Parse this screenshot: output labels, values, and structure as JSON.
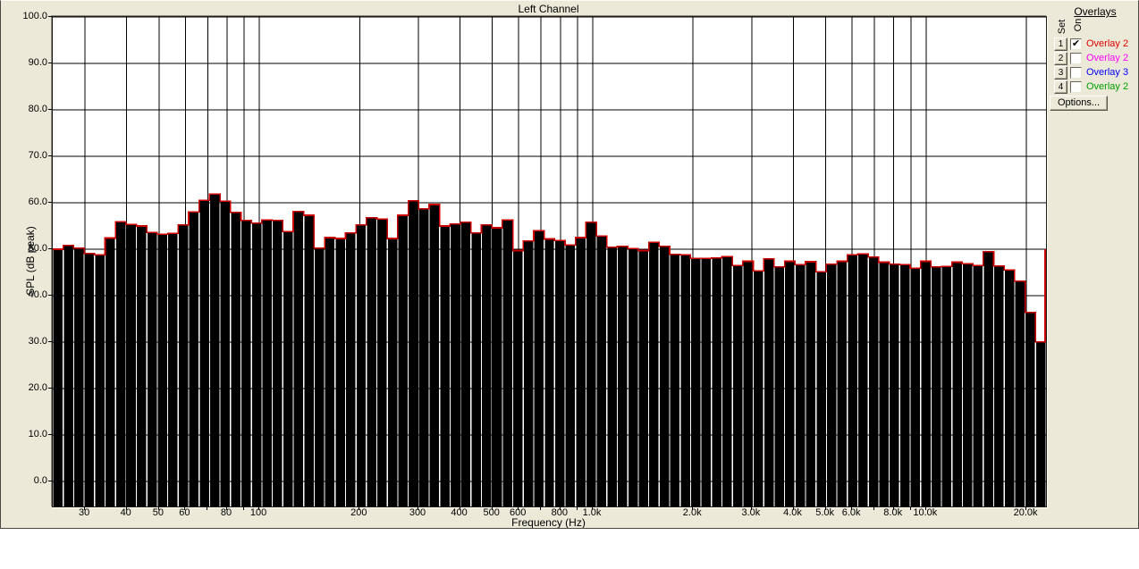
{
  "window": {
    "title": "Left Channel",
    "background_color": "#ece9d8"
  },
  "chart_data": {
    "type": "bar",
    "title": "Left Channel",
    "xlabel": "Frequency (Hz)",
    "ylabel": "SPL (dB peak)",
    "x_scale": "log",
    "x_range_hz": [
      24,
      22900
    ],
    "y_range_db": [
      -5.4,
      100
    ],
    "grid": "on",
    "bar_color": "#000000",
    "trace_color": "#cc0000",
    "trace_close_top_db": 50,
    "y_ticks": [
      {
        "value": 100,
        "label": "100.0"
      },
      {
        "value": 90,
        "label": "90.0"
      },
      {
        "value": 80,
        "label": "80.0"
      },
      {
        "value": 70,
        "label": "70.0"
      },
      {
        "value": 60,
        "label": "60.0"
      },
      {
        "value": 50,
        "label": "50.0"
      },
      {
        "value": 40,
        "label": "40.0"
      },
      {
        "value": 30,
        "label": "30.0"
      },
      {
        "value": 20,
        "label": "20.0"
      },
      {
        "value": 10,
        "label": "10.0"
      },
      {
        "value": 0,
        "label": "0.0"
      }
    ],
    "x_ticks": [
      {
        "hz": 30,
        "label": "30"
      },
      {
        "hz": 40,
        "label": "40"
      },
      {
        "hz": 50,
        "label": "50"
      },
      {
        "hz": 60,
        "label": "60"
      },
      {
        "hz": 80,
        "label": "80"
      },
      {
        "hz": 100,
        "label": "100"
      },
      {
        "hz": 200,
        "label": "200"
      },
      {
        "hz": 300,
        "label": "300"
      },
      {
        "hz": 400,
        "label": "400"
      },
      {
        "hz": 500,
        "label": "500"
      },
      {
        "hz": 600,
        "label": "600"
      },
      {
        "hz": 800,
        "label": "800"
      },
      {
        "hz": 1000,
        "label": "1.0k"
      },
      {
        "hz": 2000,
        "label": "2.0k"
      },
      {
        "hz": 3000,
        "label": "3.0k"
      },
      {
        "hz": 4000,
        "label": "4.0k"
      },
      {
        "hz": 5000,
        "label": "5.0k"
      },
      {
        "hz": 6000,
        "label": "6.0k"
      },
      {
        "hz": 8000,
        "label": "8.0k"
      },
      {
        "hz": 10000,
        "label": "10.0k"
      },
      {
        "hz": 20000,
        "label": "20.0k"
      }
    ],
    "grid_hz": [
      30,
      40,
      50,
      60,
      70,
      80,
      90,
      100,
      200,
      300,
      400,
      500,
      600,
      700,
      800,
      900,
      1000,
      2000,
      3000,
      4000,
      5000,
      6000,
      7000,
      8000,
      9000,
      10000,
      20000
    ],
    "grid_db": [
      0,
      10,
      20,
      30,
      40,
      50,
      60,
      70,
      80,
      90,
      100
    ],
    "bands_note": "95 log-spaced bands from ~25 Hz to ~20.6 kHz",
    "values_db": [
      50.0,
      50.8,
      50.2,
      49.1,
      48.8,
      52.4,
      55.9,
      55.3,
      55.0,
      53.6,
      53.2,
      53.4,
      55.2,
      58.0,
      60.5,
      61.9,
      60.3,
      57.9,
      56.2,
      55.6,
      56.3,
      56.2,
      53.8,
      58.1,
      57.3,
      50.2,
      52.5,
      52.3,
      53.5,
      55.2,
      56.8,
      56.5,
      52.3,
      57.3,
      60.4,
      58.7,
      59.6,
      55.0,
      55.4,
      55.8,
      53.5,
      55.2,
      54.6,
      56.3,
      49.7,
      51.8,
      54.0,
      52.2,
      51.9,
      50.9,
      52.5,
      55.8,
      52.8,
      50.4,
      50.6,
      50.1,
      49.7,
      51.5,
      50.6,
      48.9,
      48.8,
      48.0,
      48.0,
      48.1,
      48.4,
      46.5,
      47.4,
      45.3,
      47.9,
      46.2,
      47.4,
      46.7,
      47.3,
      45.1,
      46.8,
      47.4,
      48.8,
      49.0,
      48.3,
      47.2,
      46.8,
      46.7,
      45.9,
      47.4,
      46.2,
      46.3,
      47.2,
      46.9,
      46.5,
      49.5,
      46.4,
      45.5,
      43.1,
      36.4,
      30.0
    ]
  },
  "overlays": {
    "header": "Overlays",
    "set_label": "Set",
    "on_label": "On",
    "check_glyph": "✔",
    "rows": [
      {
        "set": "1",
        "on": true,
        "label": "Overlay 2",
        "color": "#e10000"
      },
      {
        "set": "2",
        "on": false,
        "label": "Overlay 2",
        "color": "#ff00ff"
      },
      {
        "set": "3",
        "on": false,
        "label": "Overlay 3",
        "color": "#0000ff"
      },
      {
        "set": "4",
        "on": false,
        "label": "Overlay 2",
        "color": "#00a000"
      }
    ],
    "options_label": "Options..."
  }
}
